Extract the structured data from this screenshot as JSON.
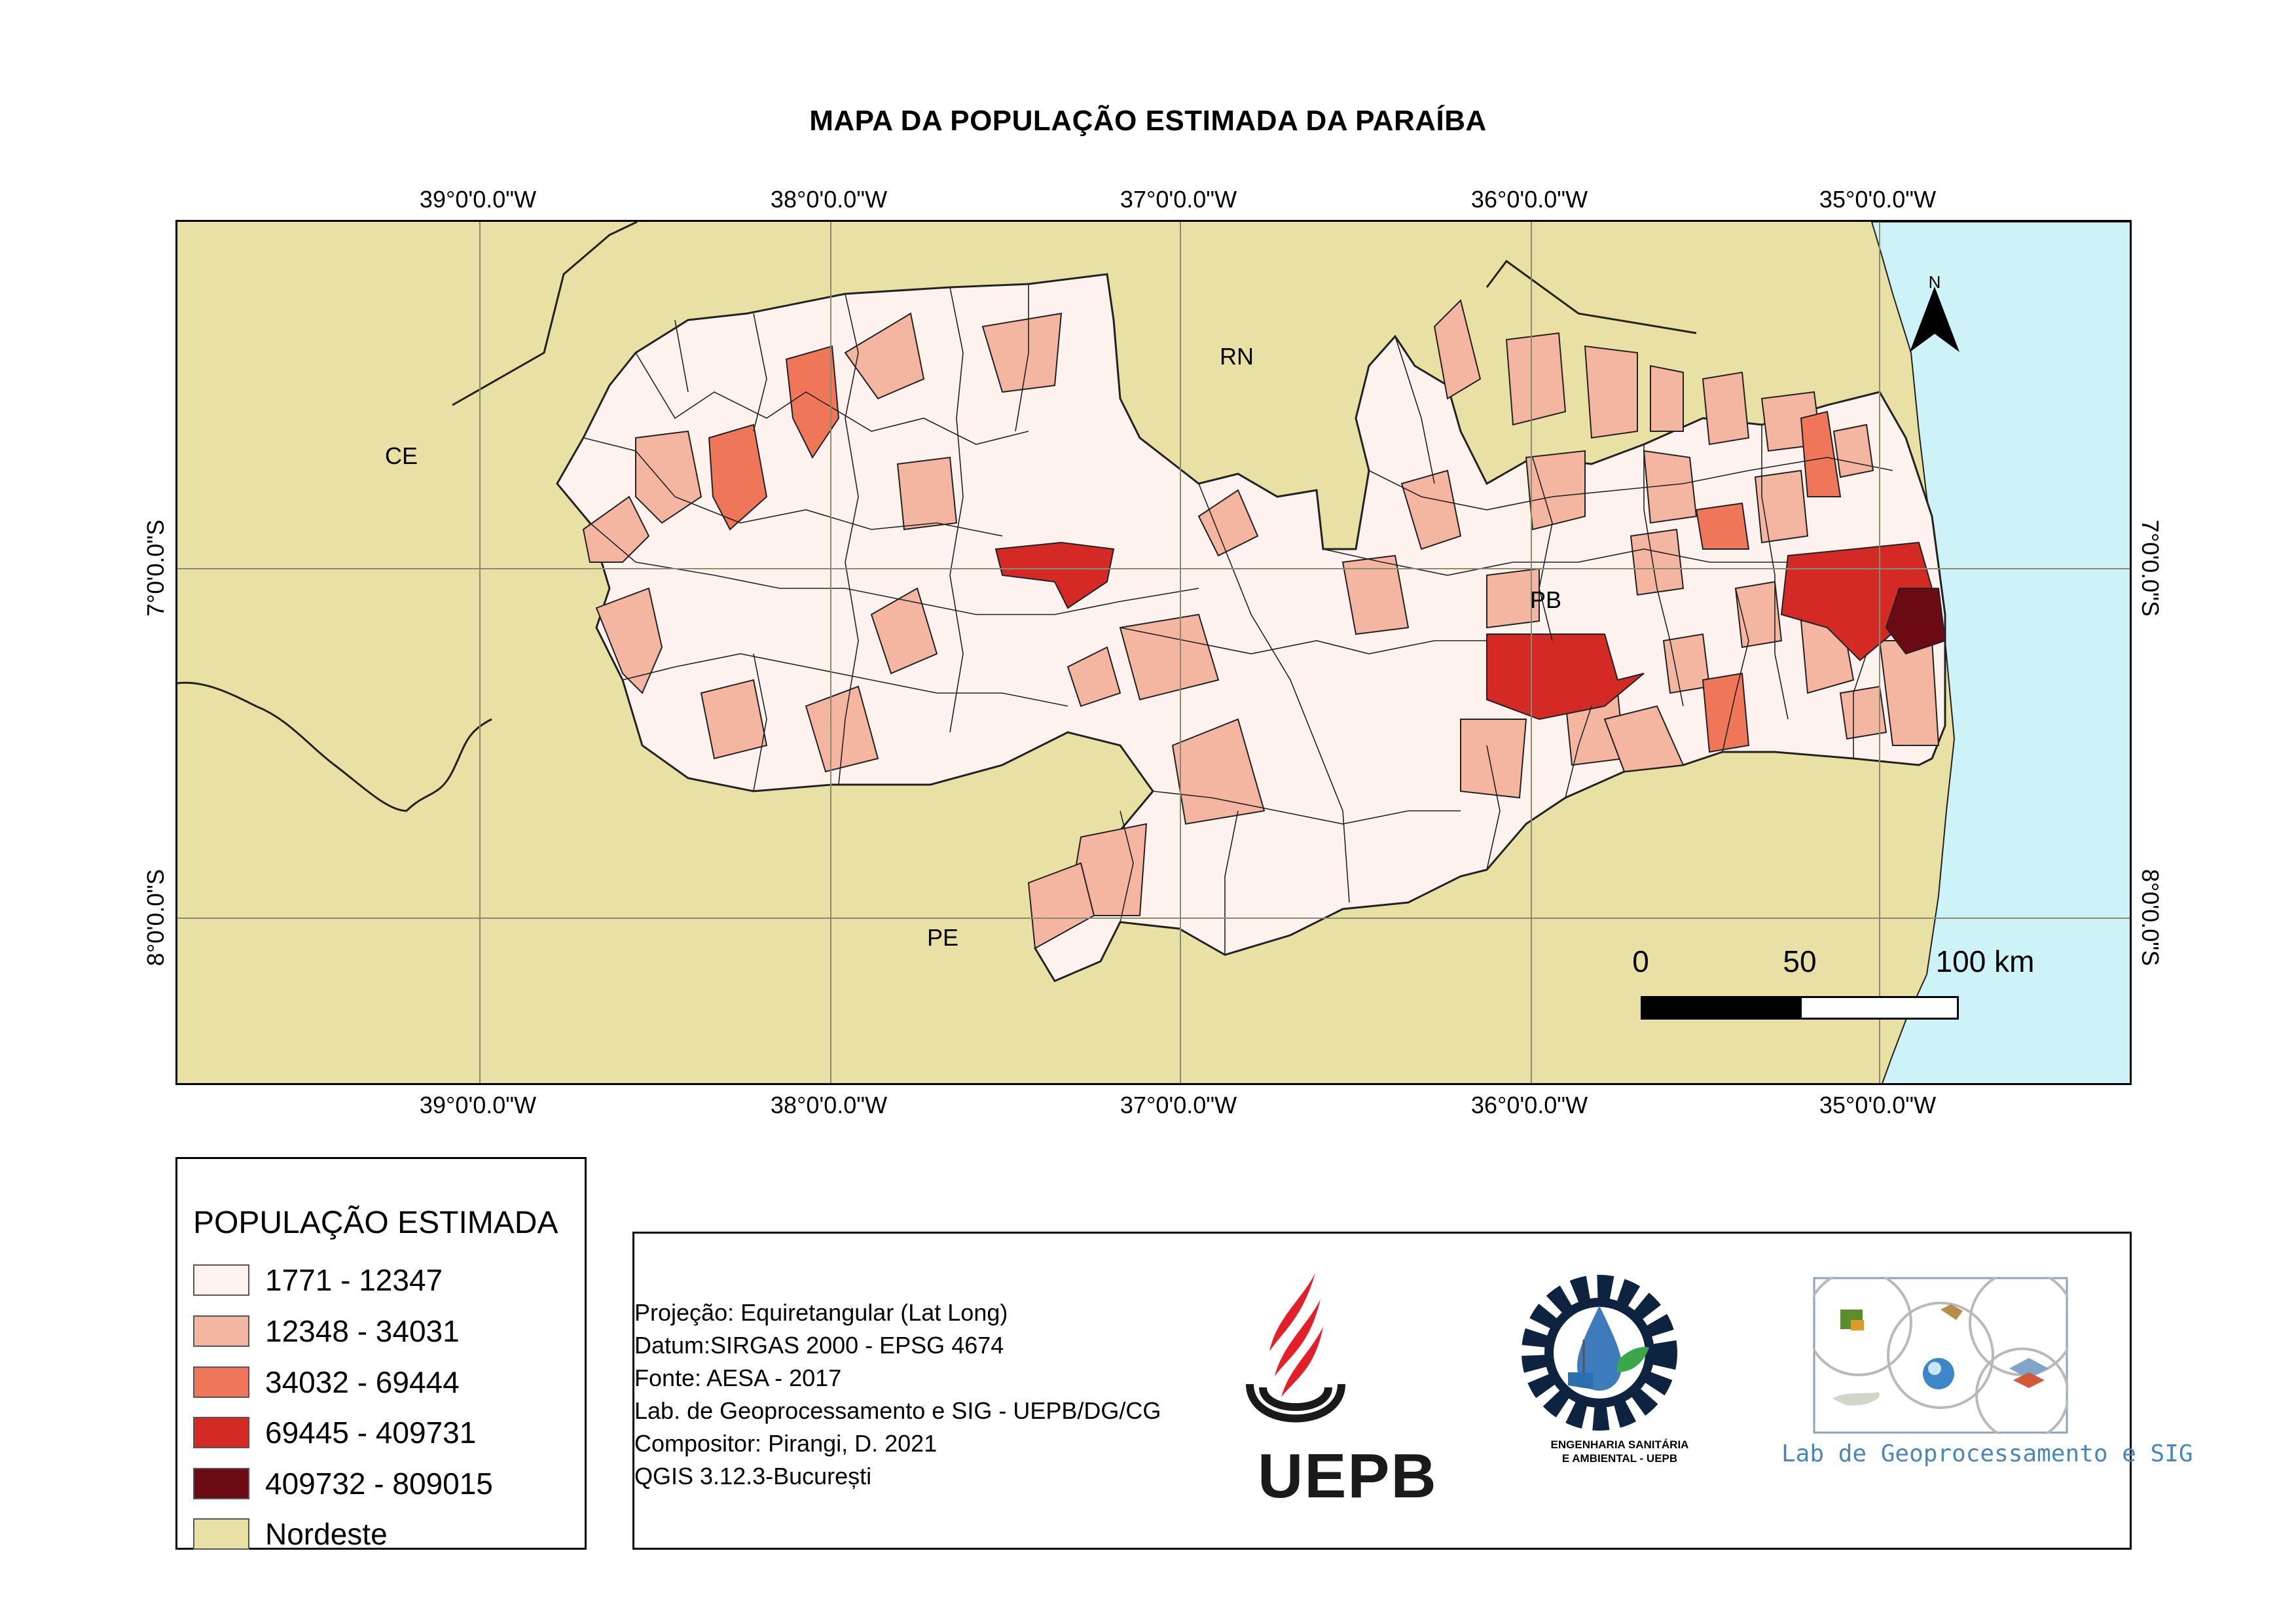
{
  "title": "MAPA DA POPULAÇÃO ESTIMADA DA PARAÍBA",
  "graticule": {
    "longitudes": [
      "39°0'0.0\"W",
      "38°0'0.0\"W",
      "37°0'0.0\"W",
      "36°0'0.0\"W",
      "35°0'0.0\"W"
    ],
    "latitudes": [
      "7°0'0.0\"S",
      "8°0'0.0\"S"
    ]
  },
  "region_labels": {
    "ce": "CE",
    "rn": "RN",
    "pb": "PB",
    "pe": "PE"
  },
  "north_arrow": {
    "letter": "N"
  },
  "scale_bar": {
    "labels": [
      "0",
      "50",
      "100 km"
    ]
  },
  "legend": {
    "title": "POPULAÇÃO ESTIMADA",
    "classes": [
      {
        "label": "1771 - 12347",
        "color": "#fdf2ee"
      },
      {
        "label": "12348 - 34031",
        "color": "#f4b6a0"
      },
      {
        "label": "34032 - 69444",
        "color": "#f0765a"
      },
      {
        "label": "69445 - 409731",
        "color": "#d32a26"
      },
      {
        "label": "409732 - 809015",
        "color": "#6b0a12"
      },
      {
        "label": "Nordeste",
        "color": "#e9e1a3"
      }
    ]
  },
  "colors": {
    "ocean": "#cdf3f9",
    "land_outside": "#e9e1a3",
    "graticule": "#8a8a70"
  },
  "credits": {
    "lines": [
      "Projeção: Equiretangular (Lat Long)",
      "Datum:SIRGAS 2000 - EPSG 4674",
      "Fonte: AESA - 2017",
      "Lab. de Geoprocessamento e SIG - UEPB/DG/CG",
      "Compositor: Pirangi, D. 2021",
      "QGIS 3.12.3-București"
    ],
    "uepb_logo_text": "UEPB",
    "esa_logo_text": [
      "ENGENHARIA SANITÁRIA",
      "E AMBIENTAL - UEPB"
    ],
    "lab_logo_text": "Lab de Geoprocessamento e SIG"
  }
}
